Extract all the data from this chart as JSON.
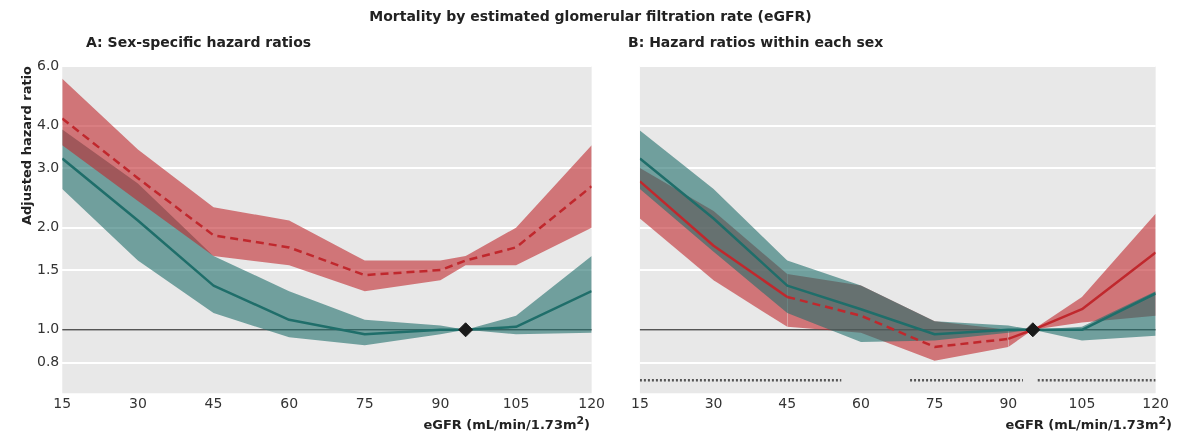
{
  "chart_data": [
    {
      "type": "line",
      "title": "Mortality by estimated glomerular filtration rate (eGFR)",
      "subtitle": "A: Sex-specific hazard ratios",
      "xlabel": "eGFR (mL/min/1.73m$^{2}$)",
      "ylabel": "Adjusted hazard ratio",
      "log": "y",
      "grid": "y",
      "marker": "none",
      "xlim": [
        15,
        120
      ],
      "xticks": [
        15,
        30,
        45,
        60,
        75,
        90,
        105,
        120
      ],
      "ylim": [
        0.65,
        6.0
      ],
      "yticks": [
        {
          "value": 0.8,
          "label": "0.8"
        },
        {
          "value": 1,
          "label": "1.0"
        },
        {
          "value": 1.5,
          "label": "1.5"
        },
        {
          "value": 2,
          "label": "2.0"
        },
        {
          "value": 3,
          "label": "3.0"
        },
        {
          "value": 4,
          "label": "4.0"
        },
        {
          "value": 6,
          "label": "6.0"
        }
      ],
      "ref_lines": [
        {
          "axis": "y",
          "value": 1,
          "color": "#555555"
        }
      ],
      "series": [
        {
          "type": "line",
          "color": "#c0282d",
          "line_style": "dashed",
          "x": [
            15,
            30,
            45,
            60,
            75,
            90,
            95,
            105,
            120
          ],
          "values": [
            4.2,
            2.8,
            1.9,
            1.75,
            1.45,
            1.5,
            1.6,
            1.75,
            2.65
          ],
          "lower": [
            3.5,
            2.4,
            1.65,
            1.55,
            1.3,
            1.4,
            1.55,
            1.55,
            2.0
          ],
          "upper": [
            5.5,
            3.4,
            2.3,
            2.1,
            1.6,
            1.6,
            1.65,
            2.0,
            3.5
          ]
        },
        {
          "type": "line",
          "color": "#1f6e6a",
          "line_style": "solid",
          "x": [
            15,
            30,
            45,
            60,
            75,
            90,
            95,
            105,
            120
          ],
          "values": [
            3.2,
            2.1,
            1.35,
            1.07,
            0.97,
            1.0,
            1.0,
            1.02,
            1.3
          ],
          "lower": [
            2.6,
            1.6,
            1.12,
            0.95,
            0.9,
            0.97,
            1.0,
            0.97,
            0.98
          ],
          "upper": [
            3.9,
            2.7,
            1.65,
            1.3,
            1.07,
            1.03,
            1.0,
            1.1,
            1.65
          ]
        },
        {
          "type": "scatter",
          "color": "#1a1a1a",
          "marker": "diamond",
          "x": [
            95
          ],
          "values": [
            1.0
          ]
        }
      ]
    },
    {
      "type": "line",
      "subtitle": "B: Hazard ratios within each sex",
      "xlabel": "eGFR (mL/min/1.73m$^{2}$)",
      "log": "y",
      "grid": "y",
      "marker": "none",
      "tick_labels": "x",
      "xlim": [
        15,
        120
      ],
      "xticks": [
        15,
        30,
        45,
        60,
        75,
        90,
        105,
        120
      ],
      "ylim": [
        0.65,
        6.0
      ],
      "yticks": [
        0.8,
        1,
        1.5,
        2,
        3,
        4,
        6
      ],
      "ref_lines": [
        {
          "axis": "y",
          "value": 1,
          "color": "#555555"
        }
      ],
      "series": [
        {
          "type": "line",
          "color": "#1f6e6a",
          "line_style": "solid",
          "x": [
            15,
            30,
            45,
            60,
            75,
            90,
            95,
            105,
            120
          ],
          "values": [
            3.2,
            2.13,
            1.35,
            1.15,
            0.97,
            1.0,
            1.0,
            1.0,
            1.28
          ],
          "lower": [
            2.6,
            1.7,
            1.12,
            0.92,
            0.93,
            0.98,
            1.0,
            0.93,
            0.96
          ],
          "upper": [
            3.87,
            2.6,
            1.6,
            1.35,
            1.06,
            1.03,
            1.0,
            1.02,
            1.3
          ]
        },
        {
          "type": "line",
          "color": "#c0282d",
          "line_style": "solid",
          "x": [
            15,
            30,
            45
          ],
          "values": [
            2.74,
            1.77,
            1.25
          ],
          "lower": [
            2.13,
            1.4,
            1.02
          ],
          "upper": [
            3.0,
            2.24,
            1.46
          ]
        },
        {
          "type": "line",
          "color": "#c0282d",
          "line_style": "dashed",
          "x": [
            45,
            60,
            75,
            90
          ],
          "values": [
            1.25,
            1.1,
            0.89,
            0.94
          ],
          "lower": [
            1.02,
            0.98,
            0.81,
            0.89
          ],
          "upper": [
            1.46,
            1.35,
            1.06,
            1.0
          ]
        },
        {
          "type": "line",
          "color": "#c0282d",
          "line_style": "solid",
          "x": [
            90,
            95,
            105,
            120
          ],
          "values": [
            0.94,
            1.0,
            1.15,
            1.69
          ],
          "lower": [
            0.89,
            1.0,
            1.05,
            1.1
          ],
          "upper": [
            1.0,
            1.0,
            1.25,
            2.2
          ]
        },
        {
          "type": "line",
          "color": "#555555",
          "line_style": "dotted",
          "x": [
            15,
            56
          ],
          "values": [
            0.71,
            0.71
          ]
        },
        {
          "type": "line",
          "color": "#555555",
          "line_style": "dotted",
          "x": [
            70,
            93
          ],
          "values": [
            0.71,
            0.71
          ]
        },
        {
          "type": "line",
          "color": "#555555",
          "line_style": "dotted",
          "x": [
            96,
            120
          ],
          "values": [
            0.71,
            0.71
          ]
        },
        {
          "type": "scatter",
          "color": "#1a1a1a",
          "marker": "diamond",
          "x": [
            95
          ],
          "values": [
            1.0
          ]
        }
      ]
    }
  ]
}
